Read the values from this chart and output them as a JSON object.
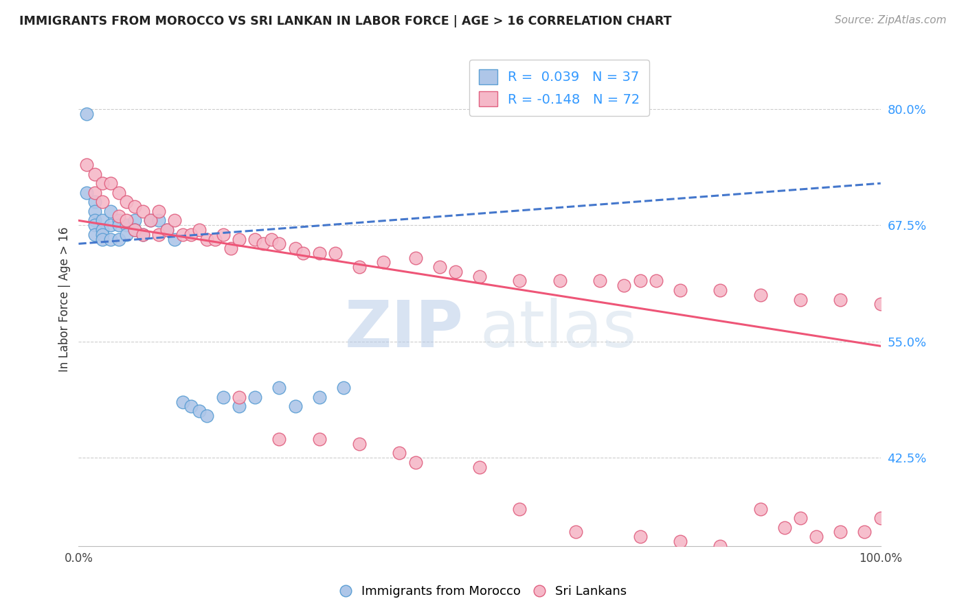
{
  "title": "IMMIGRANTS FROM MOROCCO VS SRI LANKAN IN LABOR FORCE | AGE > 16 CORRELATION CHART",
  "source": "Source: ZipAtlas.com",
  "ylabel": "In Labor Force | Age > 16",
  "xlim": [
    0.0,
    1.0
  ],
  "ylim": [
    0.33,
    0.86
  ],
  "yticks": [
    0.425,
    0.55,
    0.675,
    0.8
  ],
  "ytick_labels": [
    "42.5%",
    "55.0%",
    "67.5%",
    "80.0%"
  ],
  "xtick_labels": [
    "0.0%",
    "100.0%"
  ],
  "xticks": [
    0.0,
    1.0
  ],
  "morocco_color": "#aec6e8",
  "morocco_edge": "#5c9fd4",
  "srilanka_color": "#f5b8c8",
  "srilanka_edge": "#e06080",
  "morocco_R": 0.039,
  "morocco_N": 37,
  "srilanka_R": -0.148,
  "srilanka_N": 72,
  "legend_color": "#3399ff",
  "trend_blue": "#4477cc",
  "trend_pink": "#ee5577",
  "watermark_zip": "ZIP",
  "watermark_atlas": "atlas",
  "background": "#ffffff",
  "grid_color": "#cccccc",
  "morocco_x": [
    0.01,
    0.01,
    0.02,
    0.02,
    0.02,
    0.02,
    0.02,
    0.03,
    0.03,
    0.03,
    0.03,
    0.04,
    0.04,
    0.04,
    0.05,
    0.05,
    0.05,
    0.06,
    0.06,
    0.07,
    0.07,
    0.08,
    0.09,
    0.1,
    0.11,
    0.12,
    0.13,
    0.14,
    0.15,
    0.16,
    0.18,
    0.2,
    0.22,
    0.25,
    0.27,
    0.3,
    0.33
  ],
  "morocco_y": [
    0.795,
    0.71,
    0.7,
    0.69,
    0.68,
    0.675,
    0.665,
    0.68,
    0.67,
    0.665,
    0.66,
    0.69,
    0.675,
    0.66,
    0.68,
    0.675,
    0.66,
    0.675,
    0.665,
    0.68,
    0.67,
    0.665,
    0.68,
    0.68,
    0.67,
    0.66,
    0.485,
    0.48,
    0.475,
    0.47,
    0.49,
    0.48,
    0.49,
    0.5,
    0.48,
    0.49,
    0.5
  ],
  "srilanka_x": [
    0.01,
    0.02,
    0.02,
    0.03,
    0.03,
    0.04,
    0.05,
    0.05,
    0.06,
    0.06,
    0.07,
    0.07,
    0.08,
    0.08,
    0.09,
    0.1,
    0.1,
    0.11,
    0.12,
    0.13,
    0.14,
    0.15,
    0.16,
    0.17,
    0.18,
    0.19,
    0.2,
    0.22,
    0.23,
    0.24,
    0.25,
    0.27,
    0.28,
    0.3,
    0.32,
    0.35,
    0.38,
    0.42,
    0.45,
    0.47,
    0.5,
    0.55,
    0.6,
    0.65,
    0.68,
    0.7,
    0.72,
    0.75,
    0.8,
    0.85,
    0.9,
    0.95,
    1.0,
    0.2,
    0.25,
    0.3,
    0.35,
    0.4,
    0.42,
    0.5,
    0.55,
    0.62,
    0.7,
    0.75,
    0.8,
    0.85,
    0.88,
    0.9,
    0.92,
    0.95,
    0.98,
    1.0
  ],
  "srilanka_y": [
    0.74,
    0.73,
    0.71,
    0.72,
    0.7,
    0.72,
    0.71,
    0.685,
    0.7,
    0.68,
    0.695,
    0.67,
    0.69,
    0.665,
    0.68,
    0.69,
    0.665,
    0.67,
    0.68,
    0.665,
    0.665,
    0.67,
    0.66,
    0.66,
    0.665,
    0.65,
    0.66,
    0.66,
    0.655,
    0.66,
    0.655,
    0.65,
    0.645,
    0.645,
    0.645,
    0.63,
    0.635,
    0.64,
    0.63,
    0.625,
    0.62,
    0.615,
    0.615,
    0.615,
    0.61,
    0.615,
    0.615,
    0.605,
    0.605,
    0.6,
    0.595,
    0.595,
    0.59,
    0.49,
    0.445,
    0.445,
    0.44,
    0.43,
    0.42,
    0.415,
    0.37,
    0.345,
    0.34,
    0.335,
    0.33,
    0.37,
    0.35,
    0.36,
    0.34,
    0.345,
    0.345,
    0.36
  ],
  "morocco_trend_x0": 0.0,
  "morocco_trend_y0": 0.655,
  "morocco_trend_x1": 1.0,
  "morocco_trend_y1": 0.72,
  "srilanka_trend_x0": 0.0,
  "srilanka_trend_y0": 0.68,
  "srilanka_trend_x1": 1.0,
  "srilanka_trend_y1": 0.545
}
